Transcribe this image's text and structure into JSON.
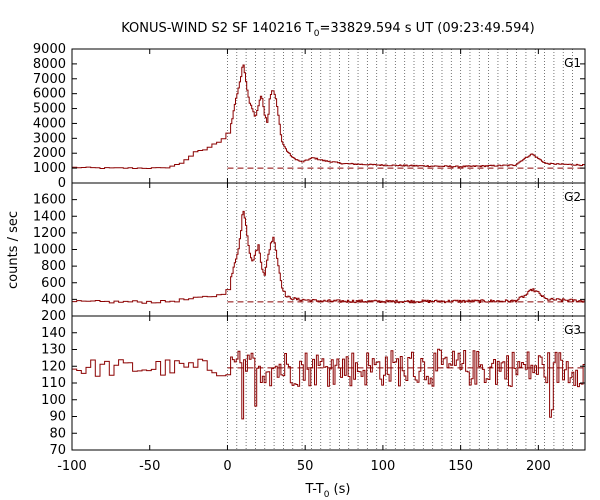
{
  "chart_data": {
    "type": "line",
    "title": "KONUS-WIND S2 SF 140216 T",
    "title_subscript": "0",
    "title_rest": "=33829.594 s UT (09:23:49.594)",
    "xlabel": "T-T",
    "xlabel_subscript": "0",
    "xlabel_rest": " (s)",
    "ylabel": "counts / sec",
    "xlim": [
      -100,
      230
    ],
    "x_ticks": [
      -100,
      -50,
      0,
      50,
      100,
      150,
      200
    ],
    "vlines": [
      0,
      6,
      12,
      18,
      24,
      30,
      36,
      42,
      48,
      54,
      60,
      66,
      72,
      78,
      84,
      90,
      96,
      102,
      108,
      114,
      120,
      126,
      132,
      138,
      144,
      150,
      156,
      162,
      168,
      174,
      180,
      186,
      192,
      198,
      204,
      210,
      216,
      222
    ],
    "line_color": "#8b0000",
    "grid": false,
    "panels": [
      {
        "label": "G1",
        "ylim": [
          0,
          9000
        ],
        "y_ticks": [
          0,
          1000,
          2000,
          3000,
          4000,
          5000,
          6000,
          7000,
          8000,
          9000
        ],
        "background": 1000,
        "noise": 40,
        "points": [
          [
            -100,
            1050
          ],
          [
            -80,
            1000
          ],
          [
            -40,
            1000
          ],
          [
            -30,
            1300
          ],
          [
            -25,
            1700
          ],
          [
            -20,
            2100
          ],
          [
            -15,
            2200
          ],
          [
            -10,
            2500
          ],
          [
            -5,
            2800
          ],
          [
            0,
            3200
          ],
          [
            3,
            4200
          ],
          [
            5,
            5400
          ],
          [
            7,
            6300
          ],
          [
            9,
            7200
          ],
          [
            10,
            8200
          ],
          [
            12,
            6800
          ],
          [
            14,
            5500
          ],
          [
            16,
            5000
          ],
          [
            18,
            4400
          ],
          [
            20,
            5200
          ],
          [
            22,
            6000
          ],
          [
            24,
            4600
          ],
          [
            26,
            4000
          ],
          [
            27,
            5600
          ],
          [
            29,
            6300
          ],
          [
            31,
            5800
          ],
          [
            33,
            4400
          ],
          [
            35,
            2800
          ],
          [
            38,
            2200
          ],
          [
            42,
            1700
          ],
          [
            48,
            1400
          ],
          [
            55,
            1700
          ],
          [
            62,
            1500
          ],
          [
            75,
            1300
          ],
          [
            100,
            1200
          ],
          [
            150,
            1100
          ],
          [
            185,
            1200
          ],
          [
            192,
            1700
          ],
          [
            196,
            1950
          ],
          [
            200,
            1650
          ],
          [
            205,
            1300
          ],
          [
            230,
            1200
          ]
        ]
      },
      {
        "label": "G2",
        "ylim": [
          200,
          1800
        ],
        "y_ticks": [
          200,
          400,
          600,
          800,
          1000,
          1200,
          1400,
          1600
        ],
        "background": 370,
        "noise": 15,
        "points": [
          [
            -100,
            370
          ],
          [
            -40,
            370
          ],
          [
            -20,
            410
          ],
          [
            -10,
            440
          ],
          [
            -5,
            450
          ],
          [
            0,
            500
          ],
          [
            3,
            700
          ],
          [
            5,
            850
          ],
          [
            7,
            1000
          ],
          [
            9,
            1250
          ],
          [
            10,
            1520
          ],
          [
            12,
            1300
          ],
          [
            14,
            1000
          ],
          [
            16,
            850
          ],
          [
            18,
            950
          ],
          [
            20,
            1050
          ],
          [
            22,
            800
          ],
          [
            24,
            700
          ],
          [
            26,
            900
          ],
          [
            28,
            1080
          ],
          [
            30,
            1150
          ],
          [
            32,
            900
          ],
          [
            35,
            560
          ],
          [
            38,
            430
          ],
          [
            45,
            400
          ],
          [
            60,
            380
          ],
          [
            100,
            375
          ],
          [
            185,
            380
          ],
          [
            192,
            450
          ],
          [
            196,
            520
          ],
          [
            200,
            480
          ],
          [
            205,
            400
          ],
          [
            230,
            380
          ]
        ]
      },
      {
        "label": "G3",
        "ylim": [
          70,
          150
        ],
        "y_ticks": [
          70,
          80,
          90,
          100,
          110,
          120,
          130,
          140
        ],
        "background": 119,
        "noise": 7,
        "points": [
          [
            -100,
            119
          ],
          [
            230,
            119
          ]
        ]
      }
    ]
  }
}
